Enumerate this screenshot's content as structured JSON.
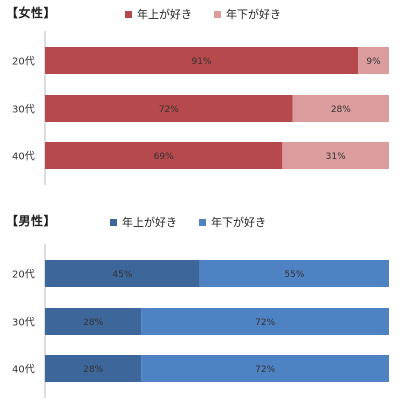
{
  "chart_data": [
    {
      "type": "bar",
      "stacked": true,
      "orientation": "horizontal",
      "title": "【女性】",
      "categories": [
        "20代",
        "30代",
        "40代"
      ],
      "series": [
        {
          "name": "年上が好き",
          "color": "#b5494b",
          "values": [
            91,
            72,
            69
          ],
          "labels": [
            "91%",
            "72%",
            "69%"
          ]
        },
        {
          "name": "年下が好き",
          "color": "#da9c9c",
          "values": [
            9,
            28,
            31
          ],
          "labels": [
            "9%",
            "28%",
            "31%"
          ]
        }
      ],
      "xlim": [
        0,
        100
      ],
      "legend_position": "top",
      "grid": false
    },
    {
      "type": "bar",
      "stacked": true,
      "orientation": "horizontal",
      "title": "【男性】",
      "categories": [
        "20代",
        "30代",
        "40代"
      ],
      "series": [
        {
          "name": "年上が好き",
          "color": "#3d669b",
          "values": [
            45,
            28,
            28
          ],
          "labels": [
            "45%",
            "28%",
            "28%"
          ]
        },
        {
          "name": "年下が好き",
          "color": "#4f82c3",
          "values": [
            55,
            72,
            72
          ],
          "labels": [
            "55%",
            "72%",
            "72%"
          ]
        }
      ],
      "xlim": [
        0,
        100
      ],
      "legend_position": "top",
      "grid": false
    }
  ]
}
